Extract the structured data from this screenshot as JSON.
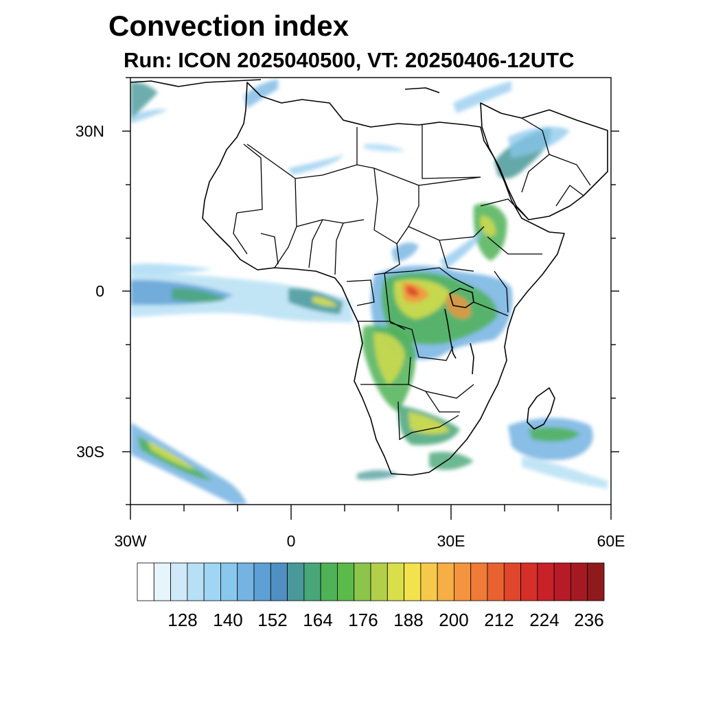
{
  "title": "Convection index",
  "subtitle": "Run: ICON 2025040500,  VT: 20250406-12UTC",
  "lat_labels": [
    "30N",
    "0",
    "30S"
  ],
  "lon_labels": [
    "30W",
    "0",
    "30E",
    "60E"
  ],
  "colorbar": {
    "labels": [
      "128",
      "140",
      "152",
      "164",
      "176",
      "188",
      "200",
      "212",
      "224",
      "236"
    ],
    "colors": [
      "#ffffff",
      "#e6f4fc",
      "#cfe9f8",
      "#b7e0f5",
      "#a0d6f3",
      "#8ac7ec",
      "#74b3e2",
      "#5e9fd5",
      "#4f8fc2",
      "#4a999a",
      "#48a678",
      "#4fb256",
      "#5bbb4a",
      "#8cc54c",
      "#b2cf4b",
      "#d9df4b",
      "#f2e24c",
      "#f6c94b",
      "#f6ae45",
      "#f4943e",
      "#f07a38",
      "#e96131",
      "#e0462c",
      "#d62e29",
      "#c82128",
      "#b71b26",
      "#a51a22",
      "#8f1a1c"
    ]
  },
  "map": {
    "lon_range": [
      -30,
      60
    ],
    "lat_range": [
      -40,
      40
    ],
    "colors": {
      "land_outline": "#000000",
      "light": "#a0d6f3",
      "blue": "#74b3e2",
      "teal": "#4a999a",
      "green": "#4fb256",
      "yellow": "#d9df4b",
      "orange": "#f4943e",
      "red": "#e0462c"
    }
  }
}
